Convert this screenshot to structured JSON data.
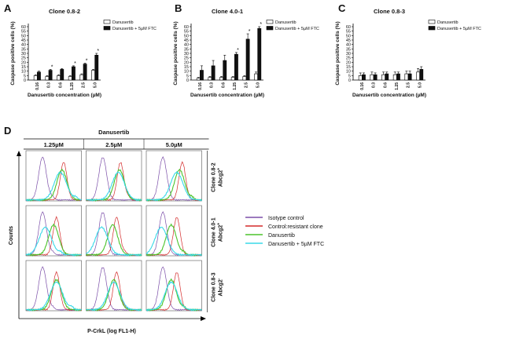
{
  "chart_data": [
    {
      "panel": "A",
      "type": "bar",
      "title": "Clone 0.8-2",
      "ylabel": "Caspase positive cells (%)",
      "xlabel": "Danusertib concentration (µM)",
      "ylim": [
        0,
        60
      ],
      "yticks": [
        "0",
        "5",
        "10",
        "15",
        "20",
        "25",
        "30",
        "35",
        "40",
        "45",
        "50",
        "55",
        "60"
      ],
      "categories": [
        "0.16",
        "0.3",
        "0.6",
        "1.25",
        "2.5",
        "5.0"
      ],
      "series": [
        {
          "name": "Danusertib",
          "values": [
            5,
            4,
            5,
            4,
            6,
            11
          ],
          "errors": [
            1,
            1,
            1,
            1,
            1,
            1
          ]
        },
        {
          "name": "Danusertib + 5µM FTC",
          "values": [
            9,
            11,
            12,
            15,
            18,
            28
          ],
          "errors": [
            1,
            1,
            1,
            1,
            1,
            2
          ]
        }
      ],
      "stars": [
        "",
        "*",
        "",
        "*",
        "*",
        "*"
      ]
    },
    {
      "panel": "B",
      "type": "bar",
      "title": "Clone 4.0-1",
      "ylabel": "Caspase positive cells (%)",
      "xlabel": "Danusertib concentration (µM)",
      "ylim": [
        0,
        60
      ],
      "yticks": [
        "0",
        "5",
        "10",
        "15",
        "20",
        "25",
        "30",
        "35",
        "40",
        "45",
        "50",
        "55",
        "60"
      ],
      "categories": [
        "0.16",
        "0.3",
        "0.6",
        "1.25",
        "2.5",
        "5.0"
      ],
      "series": [
        {
          "name": "Danusertib",
          "values": [
            2,
            3,
            3,
            3,
            4,
            7
          ],
          "errors": [
            1,
            1,
            1,
            1,
            1,
            2
          ]
        },
        {
          "name": "Danusertib + 5µM FTC",
          "values": [
            11,
            16,
            22,
            29,
            46,
            58
          ],
          "errors": [
            5,
            6,
            6,
            2,
            6,
            2
          ]
        }
      ],
      "stars": [
        "",
        "",
        "",
        "*",
        "*",
        "*"
      ]
    },
    {
      "panel": "C",
      "type": "bar",
      "title": "Clone 0.8-3",
      "ylabel": "Caspase positive cells (%)",
      "xlabel": "Danusertib concentration (µM)",
      "ylim": [
        0,
        60
      ],
      "yticks": [
        "0",
        "5",
        "10",
        "15",
        "20",
        "25",
        "30",
        "35",
        "40",
        "45",
        "50",
        "55",
        "60"
      ],
      "categories": [
        "0.16",
        "0.3",
        "0.6",
        "1.25",
        "2.5",
        "5.0"
      ],
      "series": [
        {
          "name": "Danusertib",
          "values": [
            5,
            6,
            6,
            6,
            7,
            9
          ],
          "errors": [
            3,
            3,
            3,
            3,
            3,
            4
          ]
        },
        {
          "name": "Danusertib + 5µM FTC",
          "values": [
            6,
            6,
            7,
            7,
            7,
            12
          ],
          "errors": [
            2,
            2,
            2,
            2,
            3,
            3
          ]
        }
      ],
      "stars": [
        "",
        "",
        "",
        "",
        "",
        ""
      ]
    },
    {
      "panel": "D",
      "type": "line",
      "title": "Danusertib",
      "columns": [
        "1.25µM",
        "2.5µM",
        "5.0µM"
      ],
      "rows": [
        "Clone 0.8-2 Abcg2+",
        "Clone 4.0-1 Abcg2+",
        "Clone 0.8-3 Abcg2-"
      ],
      "xlabel": "P-CrkL (log FL1-H)",
      "ylabel": "Counts",
      "legend": [
        {
          "name": "Isotype control",
          "color": "#7b4ea8"
        },
        {
          "name": "Control:resistant clone",
          "color": "#d42a2a"
        },
        {
          "name": "Danusertib",
          "color": "#4cc42c"
        },
        {
          "name": "Danusertib + 5µM FTC",
          "color": "#38d8e8"
        }
      ],
      "peak_positions_log": {
        "isotype": [
          0.3,
          0.3,
          0.3,
          0.3,
          0.3,
          0.3,
          0.3,
          0.3,
          0.3
        ],
        "control": [
          0.68,
          0.62,
          0.65,
          0.55,
          0.55,
          0.55,
          0.55,
          0.55,
          0.55
        ],
        "danusertib": [
          0.65,
          0.6,
          0.6,
          0.5,
          0.48,
          0.45,
          0.55,
          0.5,
          0.45
        ],
        "danusertib_ftc": [
          0.62,
          0.58,
          0.55,
          0.35,
          0.28,
          0.27,
          0.55,
          0.5,
          0.45
        ]
      }
    }
  ]
}
